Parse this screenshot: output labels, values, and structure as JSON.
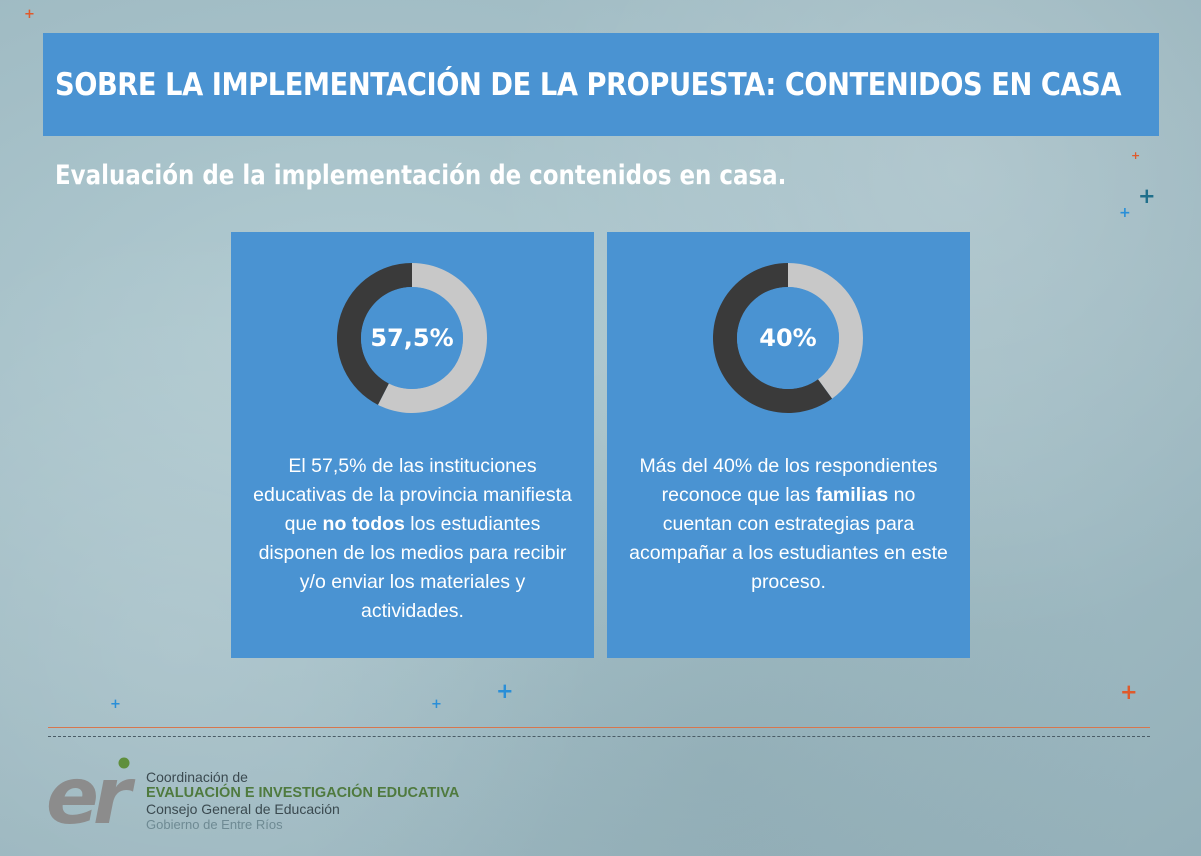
{
  "header": {
    "title": "SOBRE LA IMPLEMENTACIÓN DE LA PROPUESTA: CONTENIDOS EN CASA",
    "subtitle": "Evaluación de la implementación  de contenidos en casa."
  },
  "cards": [
    {
      "percent_label": "57,5%",
      "desc": {
        "pre": "El 57,5% de las instituciones educativas de la provincia manifiesta que ",
        "bold": "no todos",
        "post": " los estudiantes disponen de los medios para recibir y/o enviar los materiales y actividades."
      }
    },
    {
      "percent_label": "40%",
      "desc": {
        "pre": "Más del 40% de los respondientes reconoce que las ",
        "bold": "familias",
        "post": " no cuentan con estrategias para acompañar a los estudiantes en este proceso."
      }
    }
  ],
  "chart_data": [
    {
      "type": "pie",
      "values": [
        57.5,
        42.5
      ],
      "colors": [
        "#c8c8c8",
        "#3a3a3a"
      ],
      "label": "57,5%"
    },
    {
      "type": "pie",
      "values": [
        40,
        60
      ],
      "colors": [
        "#c8c8c8",
        "#3a3a3a"
      ],
      "label": "40%"
    }
  ],
  "footer": {
    "line1": "Coordinación de",
    "line2": "EVALUACIÓN E INVESTIGACIÓN EDUCATIVA",
    "line3": "Consejo General de Educación",
    "line4": "Gobierno de Entre Ríos",
    "logo_text": "er"
  },
  "colors": {
    "card": "#4a93d2",
    "donut_light": "#c8c8c8",
    "donut_dark": "#3a3a3a",
    "accent_orange": "#e05a2b",
    "accent_blue": "#2a8fd8",
    "accent_teal": "#1f6f8b"
  }
}
